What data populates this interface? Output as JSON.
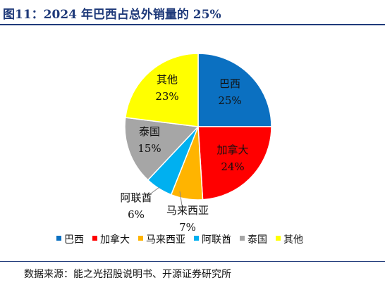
{
  "header": {
    "title": "图11：2024 年巴西占总外销量的 25%"
  },
  "chart_data": {
    "type": "pie",
    "title": "",
    "legend_position": "bottom",
    "slices": [
      {
        "name": "巴西",
        "value": 25,
        "label": "25%",
        "color": "#0b70c1"
      },
      {
        "name": "加拿大",
        "value": 24,
        "label": "24%",
        "color": "#ff0000"
      },
      {
        "name": "马来西亚",
        "value": 7,
        "label": "7%",
        "color": "#ffb400"
      },
      {
        "name": "阿联酋",
        "value": 6,
        "label": "6%",
        "color": "#00b0f0"
      },
      {
        "name": "泰国",
        "value": 15,
        "label": "15%",
        "color": "#a6a6a6"
      },
      {
        "name": "其他",
        "value": 23,
        "label": "23%",
        "color": "#ffff00"
      }
    ]
  },
  "footer": {
    "source": "数据来源：能之光招股说明书、开源证券研究所"
  }
}
